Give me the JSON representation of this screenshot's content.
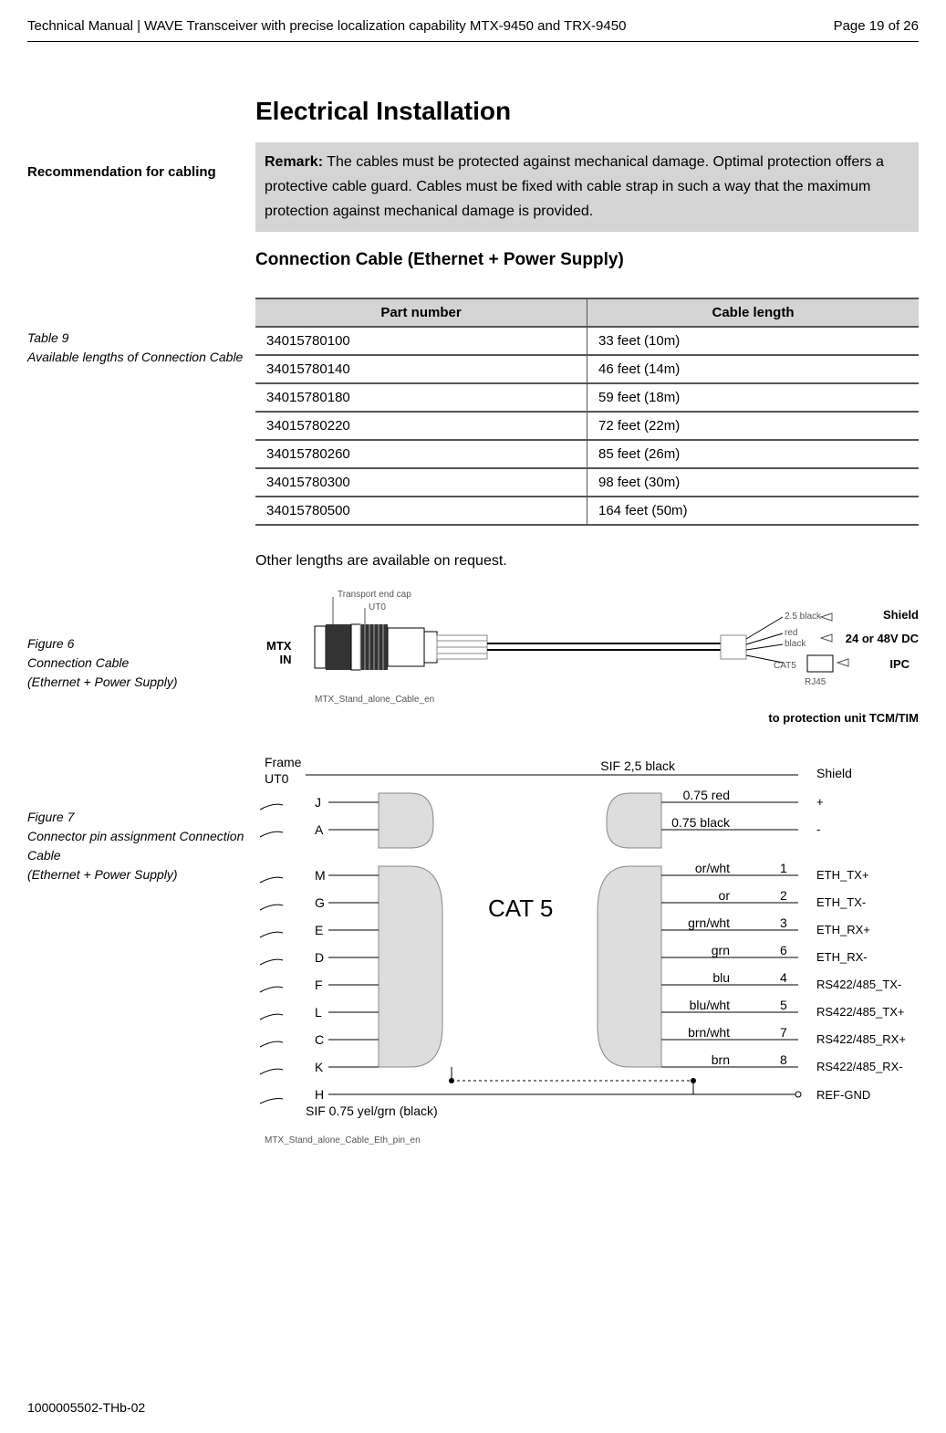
{
  "header": {
    "title": "Technical Manual | WAVE Transceiver with precise localization capability MTX-9450 and TRX-9450",
    "page": "Page 19 of 26"
  },
  "main_heading": "Electrical Installation",
  "side_recommendation": "Recommendation for cabling",
  "remark": {
    "label": "Remark:",
    "text": " The cables must be protected against mechanical damage. Optimal protection offers a protective cable guard. Cables must be fixed with cable strap in such a way that the maximum protection against mechanical damage is provided."
  },
  "sub_heading": "Connection Cable (Ethernet + Power Supply)",
  "table9": {
    "caption_line1": "Table 9",
    "caption_line2": "Available lengths of Connection Cable",
    "headers": [
      "Part number",
      "Cable length"
    ],
    "rows": [
      [
        "34015780100",
        "33 feet (10m)"
      ],
      [
        "34015780140",
        "46 feet (14m)"
      ],
      [
        "34015780180",
        "59 feet (18m)"
      ],
      [
        "34015780220",
        "72 feet (22m)"
      ],
      [
        "34015780260",
        "85 feet (26m)"
      ],
      [
        "34015780300",
        "98 feet (30m)"
      ],
      [
        "34015780500",
        "164 feet (50m)"
      ]
    ]
  },
  "note": "Other lengths are available on request.",
  "figure6": {
    "caption_line1": "Figure 6",
    "caption_line2": "Connection Cable",
    "caption_line3": "(Ethernet + Power Supply)",
    "labels": {
      "transport_cap": "Transport end cap",
      "ut0": "UT0",
      "mtx_in": "MTX IN",
      "shield": "Shield",
      "dc": "24 or 48V DC",
      "ipc": "IPC",
      "black25": "2.5 black",
      "red": "red",
      "black": "black",
      "cat5": "CAT5",
      "rj45": "RJ45",
      "footer": "MTX_Stand_alone_Cable_en",
      "bottom": "to protection unit TCM/TIM"
    }
  },
  "figure7": {
    "caption_line1": "Figure 7",
    "caption_line2": "Connector pin assignment Connection Cable",
    "caption_line3": "(Ethernet + Power Supply)",
    "frame_label": "Frame",
    "ut0_label": "UT0",
    "sif_top": "SIF 2,5 black",
    "cat5": "CAT 5",
    "sif_bottom": "SIF 0.75 yel/grn (black)",
    "footer": "MTX_Stand_alone_Cable_Eth_pin_en",
    "rows": [
      {
        "pin": "J",
        "color": "0.75 red",
        "num": "",
        "sig": "+"
      },
      {
        "pin": "A",
        "color": "0.75 black",
        "num": "",
        "sig": "-"
      },
      {
        "pin": "M",
        "color": "or/wht",
        "num": "1",
        "sig": "ETH_TX+"
      },
      {
        "pin": "G",
        "color": "or",
        "num": "2",
        "sig": "ETH_TX-"
      },
      {
        "pin": "E",
        "color": "grn/wht",
        "num": "3",
        "sig": "ETH_RX+"
      },
      {
        "pin": "D",
        "color": "grn",
        "num": "6",
        "sig": "ETH_RX-"
      },
      {
        "pin": "F",
        "color": "blu",
        "num": "4",
        "sig": "RS422/485_TX-"
      },
      {
        "pin": "L",
        "color": "blu/wht",
        "num": "5",
        "sig": "RS422/485_TX+"
      },
      {
        "pin": "C",
        "color": "brn/wht",
        "num": "7",
        "sig": "RS422/485_RX+"
      },
      {
        "pin": "K",
        "color": "brn",
        "num": "8",
        "sig": "RS422/485_RX-"
      },
      {
        "pin": "H",
        "color": "",
        "num": "",
        "sig": "REF-GND"
      }
    ],
    "shield_label": "Shield"
  },
  "footer": "1000005502-THb-02"
}
